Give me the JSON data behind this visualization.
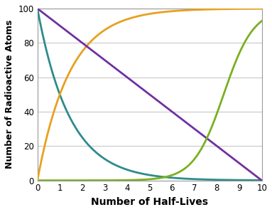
{
  "title": "",
  "xlabel": "Number of Half-Lives",
  "ylabel": "Number of Radioactive Atoms",
  "xlim": [
    0,
    10
  ],
  "ylim": [
    0,
    100
  ],
  "xticks": [
    0,
    1,
    2,
    3,
    4,
    5,
    6,
    7,
    8,
    9,
    10
  ],
  "yticks": [
    0,
    20,
    40,
    60,
    80,
    100
  ],
  "teal_color": "#2E8B8B",
  "orange_color": "#E8A020",
  "purple_color": "#7030A0",
  "green_color": "#7AB020",
  "background_color": "#FFFFFF",
  "grid_color": "#C8C8C8",
  "xlabel_fontsize": 10,
  "ylabel_fontsize": 9,
  "tick_fontsize": 8.5,
  "line_width": 2.0
}
